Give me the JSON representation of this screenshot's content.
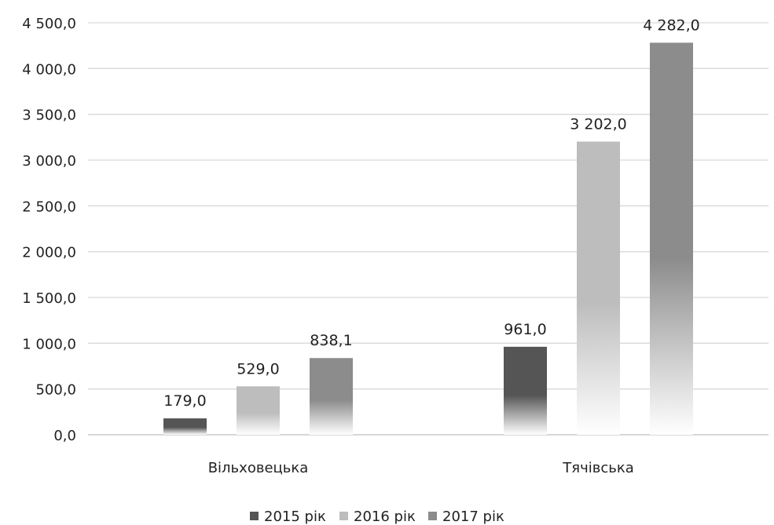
{
  "chart_data": {
    "type": "bar",
    "categories": [
      "Вільховецька",
      "Тячівська"
    ],
    "series": [
      {
        "name": "2015 рік",
        "values": [
          179.0,
          961.0
        ],
        "color": "#555555"
      },
      {
        "name": "2016 рік",
        "values": [
          529.0,
          3202.0
        ],
        "color": "#bdbdbd"
      },
      {
        "name": "2017 рік",
        "values": [
          838.1,
          4282.0
        ],
        "color": "#8c8c8c"
      }
    ],
    "data_labels": [
      [
        "179,0",
        "961,0"
      ],
      [
        "529,0",
        "3 202,0"
      ],
      [
        "838,1",
        "4 282,0"
      ]
    ],
    "y_ticks": [
      {
        "value": 0,
        "label": "0,0"
      },
      {
        "value": 500,
        "label": "500,0"
      },
      {
        "value": 1000,
        "label": "1 000,0"
      },
      {
        "value": 1500,
        "label": "1 500,0"
      },
      {
        "value": 2000,
        "label": "2 000,0"
      },
      {
        "value": 2500,
        "label": "2 500,0"
      },
      {
        "value": 3000,
        "label": "3 000,0"
      },
      {
        "value": 3500,
        "label": "3 500,0"
      },
      {
        "value": 4000,
        "label": "4 000,0"
      },
      {
        "value": 4500,
        "label": "4 500,0"
      }
    ],
    "ylim": [
      0,
      4500
    ],
    "grid": true,
    "legend_position": "bottom",
    "gradient_fill": "fades to white toward the baseline"
  }
}
